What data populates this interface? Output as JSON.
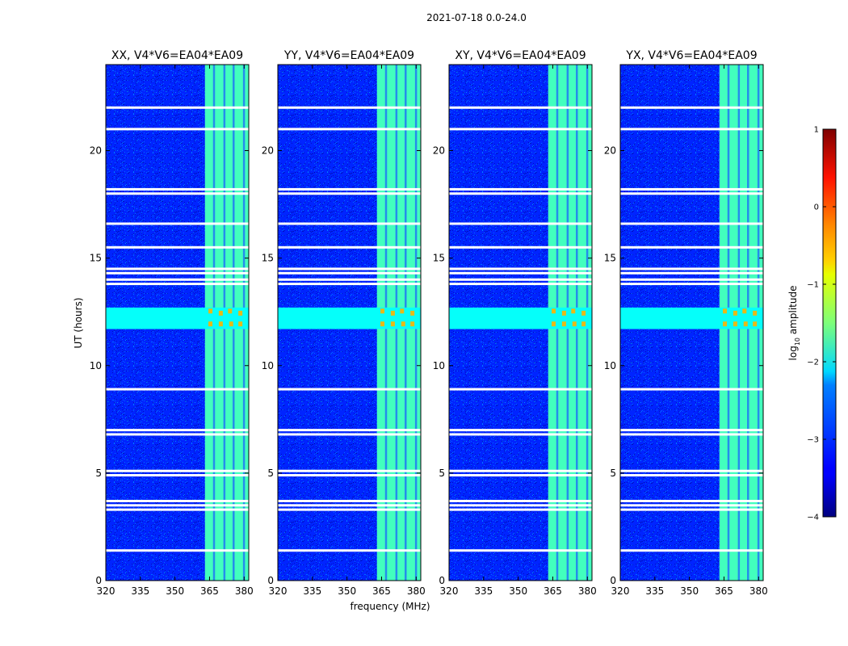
{
  "figure": {
    "suptitle": "2021-07-18 0.0-24.0"
  },
  "chart_data": {
    "type": "heatmap",
    "title": "2021-07-18 0.0-24.0",
    "xlabel": "frequency (MHz)",
    "ylabel": "UT (hours)",
    "xlim": [
      320,
      382
    ],
    "ylim": [
      0,
      24
    ],
    "x_ticks": [
      320,
      335,
      350,
      365,
      380
    ],
    "y_ticks": [
      0,
      5,
      10,
      15,
      20
    ],
    "panels": [
      {
        "name": "XX",
        "title": "XX, V4*V6=EA04*EA09"
      },
      {
        "name": "YY",
        "title": "YY, V4*V6=EA04*EA09"
      },
      {
        "name": "XY",
        "title": "XY, V4*V6=EA04*EA09"
      },
      {
        "name": "YX",
        "title": "YX, V4*V6=EA04*EA09"
      }
    ],
    "background_log10_amplitude": -3.2,
    "features": [
      {
        "kind": "band",
        "axis": "frequency",
        "range": [
          363,
          382
        ],
        "note": "strong RFI band, striped",
        "log10_amplitude": -1.8,
        "peak_log10_amplitude": -0.5
      },
      {
        "kind": "band",
        "axis": "time",
        "range": [
          11.7,
          12.7
        ],
        "note": "broadband horizontal feature",
        "log10_amplitude": -2.1
      }
    ],
    "flagged_rows_hours": [
      1.4,
      3.3,
      3.5,
      3.7,
      4.9,
      5.1,
      6.8,
      7.0,
      8.9,
      13.8,
      14.0,
      14.3,
      14.5,
      15.5,
      16.6,
      18.0,
      18.2,
      21.0,
      22.0
    ],
    "colorbar": {
      "label": "log10 amplitude",
      "label_main": "log",
      "label_sub": "10",
      "label_rest": " amplitude",
      "range": [
        -4,
        1
      ],
      "ticks": [
        1,
        0,
        -1,
        -2,
        -3,
        -4
      ],
      "tick_labels": [
        "1",
        "0",
        "−1",
        "−2",
        "−3",
        "−4"
      ],
      "colormap": "jet"
    }
  }
}
